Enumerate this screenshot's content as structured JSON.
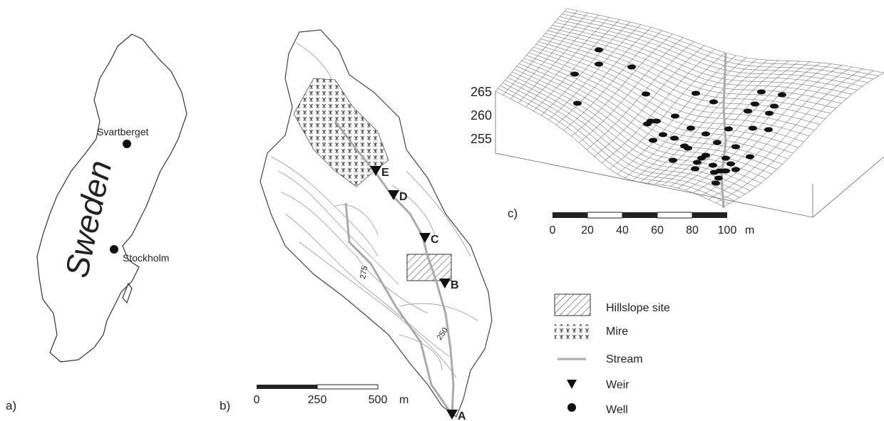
{
  "panels": {
    "a": {
      "label": "a)",
      "country": "Sweden",
      "sites": [
        "Svartberget",
        "Stockholm"
      ]
    },
    "b": {
      "label": "b)",
      "weirs": [
        "E",
        "D",
        "C",
        "B",
        "A"
      ],
      "contours": [
        275,
        250
      ],
      "scale_bar": {
        "ticks": [
          0,
          250,
          500
        ],
        "unit": "m"
      }
    },
    "c": {
      "label": "c)",
      "elevation_ticks": [
        265,
        260,
        255
      ],
      "scale_bar": {
        "ticks": [
          0,
          20,
          40,
          60,
          80,
          100
        ],
        "unit": "m"
      }
    }
  },
  "legend": [
    {
      "label": "Hillslope site"
    },
    {
      "label": "Mire"
    },
    {
      "label": "Stream"
    },
    {
      "label": "Weir"
    },
    {
      "label": "Well"
    }
  ]
}
